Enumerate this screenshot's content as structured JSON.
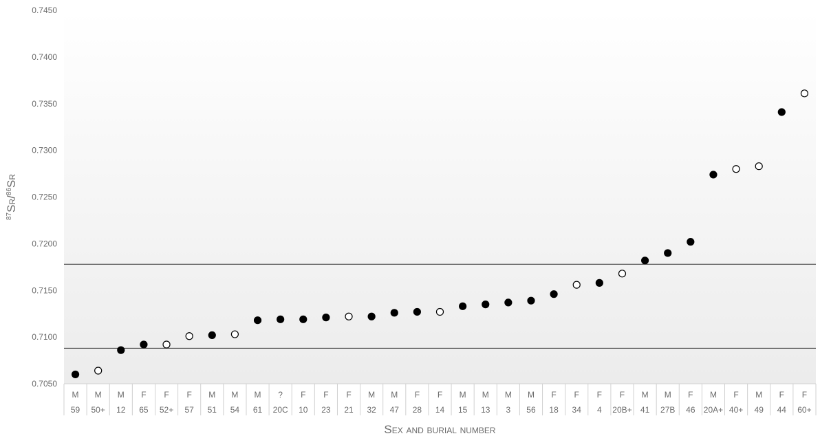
{
  "chart_data": {
    "type": "scatter",
    "title": "",
    "xlabel": "Sex and burial number",
    "ylabel": {
      "parts": [
        "87",
        "Sr/",
        "86",
        "Sr"
      ]
    },
    "ylim": [
      0.705,
      0.745
    ],
    "yticks": [
      "0.7050",
      "0.7100",
      "0.7150",
      "0.7200",
      "0.7250",
      "0.7300",
      "0.7350",
      "0.7400",
      "0.7450"
    ],
    "reference_lines": [
      0.7088,
      0.7178
    ],
    "marker_styles": {
      "filled": "#000000",
      "open": "#ffffff"
    },
    "points": [
      {
        "sex": "M",
        "burial": "59",
        "value": 0.706,
        "filled": true
      },
      {
        "sex": "M",
        "burial": "50+",
        "value": 0.7064,
        "filled": false
      },
      {
        "sex": "M",
        "burial": "12",
        "value": 0.7086,
        "filled": true
      },
      {
        "sex": "F",
        "burial": "65",
        "value": 0.7092,
        "filled": true
      },
      {
        "sex": "F",
        "burial": "52+",
        "value": 0.7092,
        "filled": false
      },
      {
        "sex": "F",
        "burial": "57",
        "value": 0.7101,
        "filled": false
      },
      {
        "sex": "M",
        "burial": "51",
        "value": 0.7102,
        "filled": true
      },
      {
        "sex": "M",
        "burial": "54",
        "value": 0.7103,
        "filled": false
      },
      {
        "sex": "M",
        "burial": "61",
        "value": 0.7118,
        "filled": true
      },
      {
        "sex": "?",
        "burial": "20C",
        "value": 0.7119,
        "filled": true
      },
      {
        "sex": "F",
        "burial": "10",
        "value": 0.7119,
        "filled": true
      },
      {
        "sex": "F",
        "burial": "23",
        "value": 0.7121,
        "filled": true
      },
      {
        "sex": "F",
        "burial": "21",
        "value": 0.7122,
        "filled": false
      },
      {
        "sex": "M",
        "burial": "32",
        "value": 0.7122,
        "filled": true
      },
      {
        "sex": "M",
        "burial": "47",
        "value": 0.7126,
        "filled": true
      },
      {
        "sex": "F",
        "burial": "28",
        "value": 0.7127,
        "filled": true
      },
      {
        "sex": "F",
        "burial": "14",
        "value": 0.7127,
        "filled": false
      },
      {
        "sex": "M",
        "burial": "15",
        "value": 0.7133,
        "filled": true
      },
      {
        "sex": "M",
        "burial": "13",
        "value": 0.7135,
        "filled": true
      },
      {
        "sex": "M",
        "burial": "3",
        "value": 0.7137,
        "filled": true
      },
      {
        "sex": "M",
        "burial": "56",
        "value": 0.7139,
        "filled": true
      },
      {
        "sex": "F",
        "burial": "18",
        "value": 0.7146,
        "filled": true
      },
      {
        "sex": "F",
        "burial": "34",
        "value": 0.7156,
        "filled": false
      },
      {
        "sex": "F",
        "burial": "4",
        "value": 0.7158,
        "filled": true
      },
      {
        "sex": "F",
        "burial": "20B+",
        "value": 0.7168,
        "filled": false
      },
      {
        "sex": "M",
        "burial": "41",
        "value": 0.7182,
        "filled": true
      },
      {
        "sex": "M",
        "burial": "27B",
        "value": 0.719,
        "filled": true
      },
      {
        "sex": "F",
        "burial": "46",
        "value": 0.7202,
        "filled": true
      },
      {
        "sex": "M",
        "burial": "20A+",
        "value": 0.7274,
        "filled": true
      },
      {
        "sex": "F",
        "burial": "40+",
        "value": 0.728,
        "filled": false
      },
      {
        "sex": "M",
        "burial": "49",
        "value": 0.7283,
        "filled": false
      },
      {
        "sex": "F",
        "burial": "44",
        "value": 0.7341,
        "filled": true
      },
      {
        "sex": "F",
        "burial": "60+",
        "value": 0.7361,
        "filled": false
      }
    ]
  }
}
